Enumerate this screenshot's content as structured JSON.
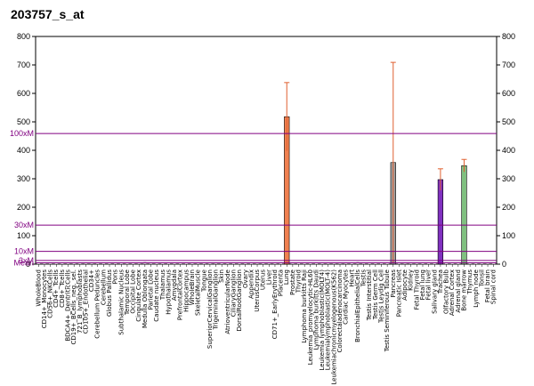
{
  "chart_data": {
    "type": "bar",
    "title": "203757_s_at",
    "ylim": [
      0,
      800
    ],
    "yticks": [
      0,
      100,
      200,
      300,
      400,
      500,
      600,
      700,
      800
    ],
    "grid": false,
    "reference_lines": [
      {
        "label": "100xM",
        "value": 459
      },
      {
        "label": "30xM",
        "value": 137
      },
      {
        "label": "10xM",
        "value": 45
      },
      {
        "label": "3xM",
        "value": 13
      },
      {
        "label": "Mean",
        "value": 4.6
      }
    ],
    "categories": [
      "WholeBlood",
      "CD14+_Monocytes",
      "CD56+_NKCells",
      "CD4+_Tcells",
      "CD8+_Tcells",
      "BDCA4+_DentriticCells",
      "CD19+_BCells_neg._sel.",
      "721_B_lymphoblasts",
      "CD105+_Endothelial",
      "CD34+",
      "Cerebellum Peduncles",
      "Cerebellum",
      "Globus Pallidus",
      "Pons",
      "Subthalamic Nucleus",
      "Temporal Lobe",
      "Occipital Lobe",
      "Cingulate Cortex",
      "Medulla Oblongata",
      "Parietal Lobe",
      "Caudate nucleus",
      "Thalamus",
      "Hypothalamus",
      "Amygdala",
      "PrefrontalCortex",
      "Hippocampus",
      "WholeBrain",
      "SkeletalMuscle",
      "Tongue",
      "SuperiorCervicalGanglion",
      "TrigeminalGanglion",
      "Skin",
      "AtrioventricularNode",
      "CiliaryGanglion",
      "DorsalRootGanglion",
      "Ovary",
      "Appendix",
      "UterusCorpus",
      "Uterus",
      "Liver",
      "CD71+_EarlyErythroid",
      "Placenta",
      "Lung",
      "Prostate",
      "Thyroid",
      "Lymphoma burkitts Raji",
      "Leukemia_promyelocytic-HL60",
      "Lymphoma burkitts Daudi",
      "Leukemia lymphoblastic(MOLT4)",
      "Leukemialymphoblastic(MOLT-4)",
      "Leukemiachronicmyelogenous(K562)",
      "Colorectaladenocarcinoma",
      "Cardiac Myocytes",
      "Heart",
      "BronchialEpithelialCells",
      "Testis",
      "Testis Interstitial",
      "Testis Germ Cell",
      "Testis Leydig Cell",
      "Testis Seminiferous Tubule",
      "Pancreas",
      "Pancreatic Islet",
      "Adipocyte",
      "Kidney",
      "Fetal Thyroid",
      "Fetal lung",
      "Fetal liver",
      "Salivary gland",
      "Trachea",
      "Olfactory Bulb",
      "Adrenal Cortex",
      "Adrenal gland",
      "Bone marrow",
      "Thymus",
      "Lymph node",
      "Tonsil",
      "Fetal brain",
      "Spinal cord"
    ],
    "values": [
      2,
      3,
      3,
      2,
      2,
      3,
      2,
      2,
      3,
      4,
      2,
      2,
      2,
      2,
      2,
      2,
      2,
      3,
      8,
      3,
      2,
      2,
      2,
      2,
      2,
      2,
      2,
      3,
      2,
      2,
      4,
      2,
      2,
      2,
      2,
      2,
      2,
      3,
      2,
      3,
      2,
      2,
      518,
      3,
      2,
      2,
      2,
      2,
      2,
      3,
      3,
      3,
      4,
      2,
      8,
      3,
      2,
      2,
      2,
      2,
      357,
      6,
      3,
      3,
      3,
      2,
      2,
      2,
      297,
      2,
      2,
      2,
      346,
      2,
      2,
      3,
      6,
      2
    ],
    "errors": [
      0,
      0,
      0,
      0,
      0,
      0,
      0,
      0,
      0,
      0,
      0,
      0,
      0,
      0,
      0,
      0,
      0,
      0,
      0,
      0,
      0,
      0,
      0,
      0,
      0,
      0,
      0,
      0,
      0,
      0,
      0,
      0,
      0,
      0,
      0,
      0,
      0,
      0,
      0,
      0,
      0,
      0,
      120,
      0,
      0,
      0,
      0,
      0,
      0,
      0,
      0,
      0,
      0,
      0,
      0,
      0,
      0,
      0,
      0,
      0,
      352,
      0,
      0,
      0,
      0,
      0,
      0,
      0,
      38,
      0,
      0,
      0,
      22,
      0,
      0,
      0,
      0,
      0
    ],
    "colors": {
      "default_bar": "#cfcfcf",
      "axis": "#000000",
      "reference": "#800080",
      "error": "#e06030",
      "highlight": {
        "42": "#f08050",
        "60": "#a0a0a0",
        "68": "#8030c0",
        "72": "#80c080"
      }
    }
  }
}
